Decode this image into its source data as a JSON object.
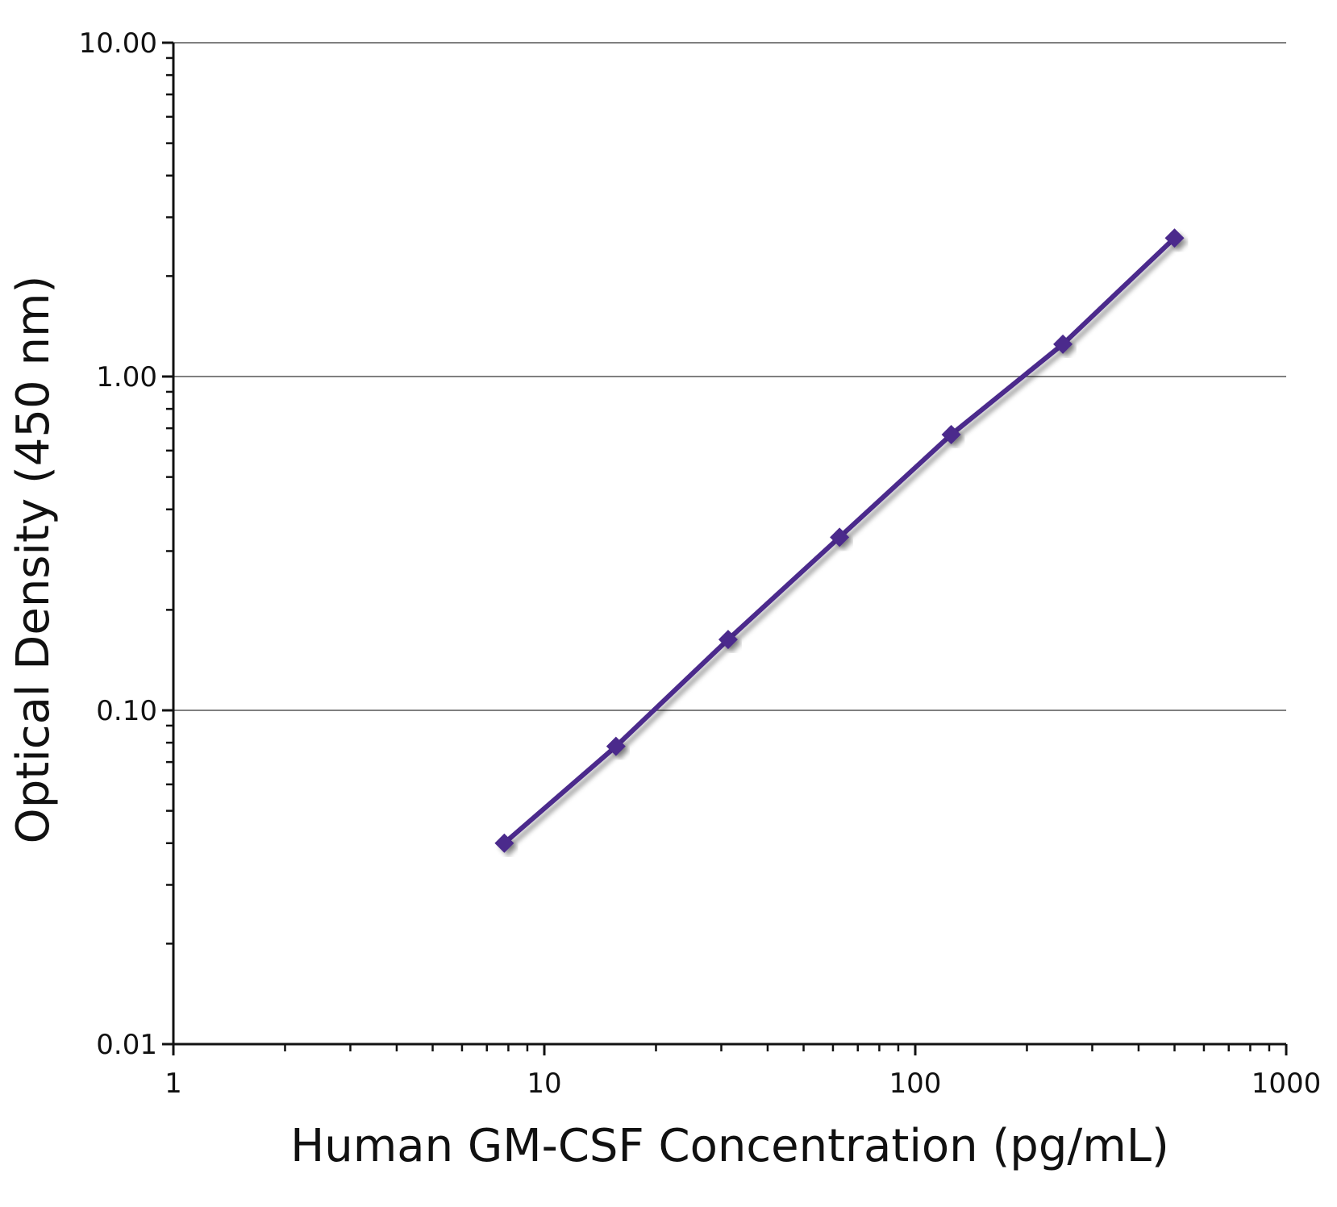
{
  "chart_data": {
    "type": "line",
    "xlabel": "Human GM-CSF Concentration (pg/mL)",
    "ylabel": "Optical Density (450 nm)",
    "xscale": "log",
    "yscale": "log",
    "xlim": [
      1,
      1000
    ],
    "ylim": [
      0.01,
      10
    ],
    "x_ticks": [
      "1",
      "10",
      "100",
      "1000"
    ],
    "y_ticks": [
      "0.01",
      "0.10",
      "1.00",
      "10.00"
    ],
    "grid": "horizontal major gridlines",
    "legend": "none",
    "series": [
      {
        "color": "#4b2a8c",
        "marker": "diamond",
        "x": [
          7.8,
          15.6,
          31.3,
          62.5,
          125,
          250,
          500
        ],
        "y": [
          0.04,
          0.078,
          0.163,
          0.33,
          0.67,
          1.25,
          2.6
        ]
      }
    ]
  }
}
